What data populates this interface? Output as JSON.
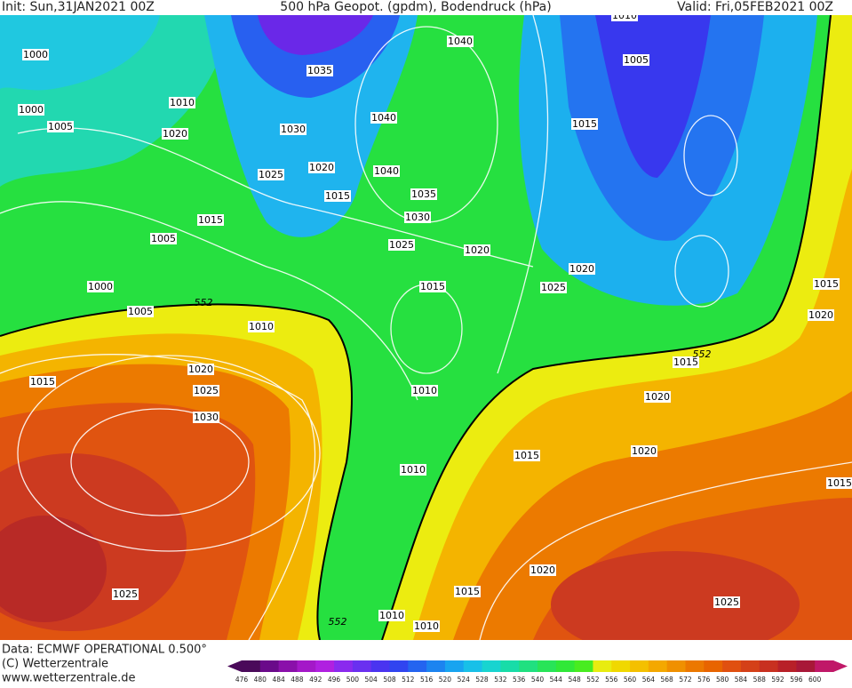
{
  "header": {
    "init": "Init: Sun,31JAN2021 00Z",
    "title": "500 hPa Geopot. (gpdm), Bodendruck (hPa)",
    "valid": "Valid: Fri,05FEB2021 00Z"
  },
  "isobar_labels": [
    1000,
    1000,
    1005,
    1010,
    1020,
    1035,
    1030,
    1020,
    1025,
    1015,
    1040,
    1040,
    1040,
    1035,
    1030,
    1025,
    1020,
    1015,
    1005,
    1015,
    1020,
    1025,
    1015,
    1005,
    1000,
    1005,
    1010,
    1015,
    1020,
    1025,
    1030,
    1010,
    1010,
    1015,
    1020,
    1020,
    1015,
    1015,
    1020,
    1015,
    1020,
    1015,
    1025,
    1025,
    1010,
    1010,
    1010
  ],
  "contour_labels": [
    552,
    552,
    552
  ],
  "colorbar": {
    "levels": [
      476,
      480,
      484,
      488,
      492,
      496,
      500,
      504,
      508,
      512,
      516,
      520,
      524,
      528,
      532,
      536,
      540,
      544,
      548,
      552,
      556,
      560,
      564,
      568,
      572,
      576,
      580,
      584,
      588,
      592,
      596,
      600
    ],
    "colors": [
      "#4a0a5a",
      "#6a0a8a",
      "#8a10aa",
      "#a418c8",
      "#b020e0",
      "#8a2aee",
      "#6a30f0",
      "#4a34f0",
      "#3044f0",
      "#2464f0",
      "#1c84f0",
      "#18a4f0",
      "#18c0e8",
      "#18d4d0",
      "#18dca8",
      "#20e080",
      "#28e458",
      "#30e838",
      "#48ec20",
      "#e8ec10",
      "#f0d800",
      "#f4c000",
      "#f4a800",
      "#f09000",
      "#ec7800",
      "#e86400",
      "#e05010",
      "#d44018",
      "#c83020",
      "#b82028",
      "#a81838",
      "#c01868"
    ]
  },
  "footer": {
    "data": "Data: ECMWF OPERATIONAL 0.500°",
    "copyright": "(C) Wetterzentrale",
    "url": "www.wetterzentrale.de"
  }
}
